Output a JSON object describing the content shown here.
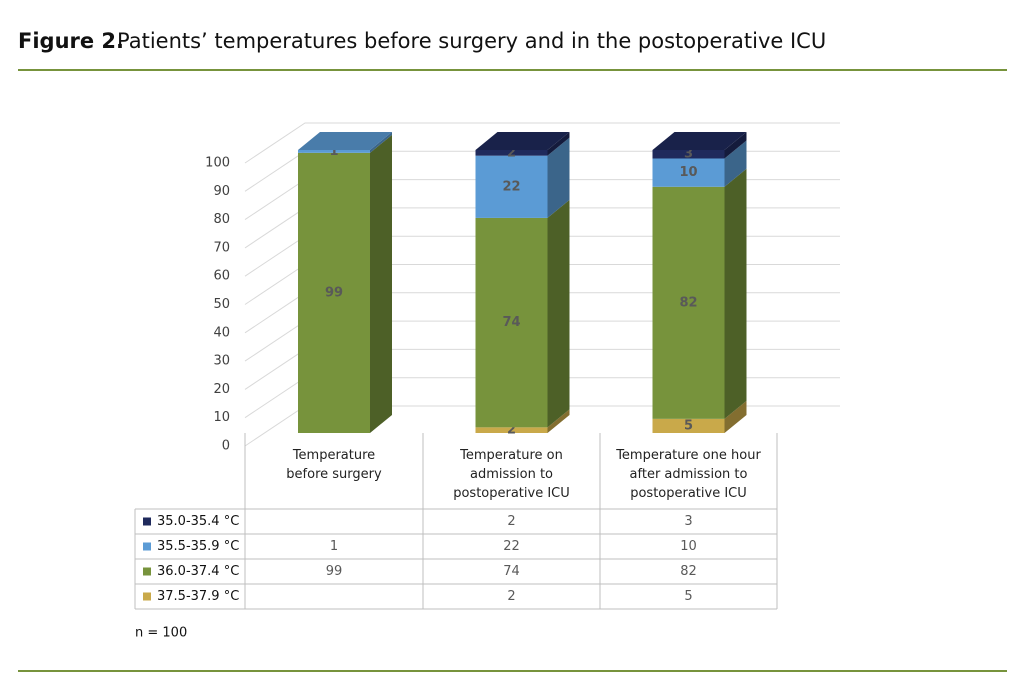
{
  "chart_data": {
    "type": "bar3d-stacked",
    "figure_label": "Figure 2.",
    "title": "Patients’ temperatures before surgery and in the postoperative ICU",
    "categories": [
      "Temperature before surgery",
      "Temperature on admission to postoperative ICU",
      "Temperature one hour after admission to postoperative ICU"
    ],
    "series": [
      {
        "name": "35.0-35.4 °C",
        "color": "#1f2a5c",
        "values": [
          null,
          2,
          3
        ]
      },
      {
        "name": "35.5-35.9 °C",
        "color": "#5b9bd5",
        "values": [
          1,
          22,
          10
        ]
      },
      {
        "name": "36.0-37.4 °C",
        "color": "#77933c",
        "values": [
          99,
          74,
          82
        ]
      },
      {
        "name": "37.5-37.9 °C",
        "color": "#c9a94a",
        "values": [
          null,
          2,
          5
        ]
      }
    ],
    "ylim": [
      0,
      100
    ],
    "yticks": [
      0,
      10,
      20,
      30,
      40,
      50,
      60,
      70,
      80,
      90,
      100
    ],
    "grid": true,
    "note": "n = 100"
  }
}
